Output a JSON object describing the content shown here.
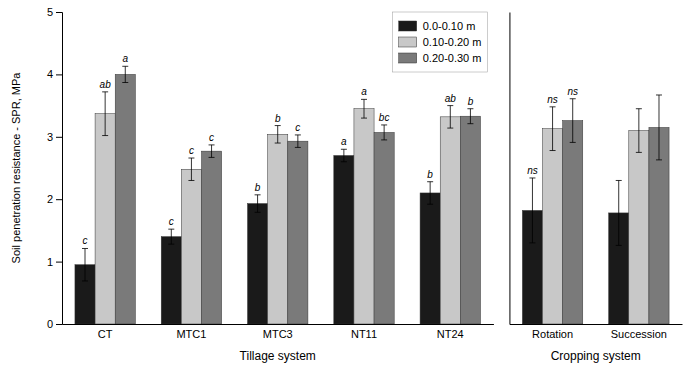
{
  "chart_data": [
    {
      "type": "bar",
      "xlabel": "Tillage system",
      "ylabel": "Soil penetration resistance - SPR, MPa",
      "categories": [
        "CT",
        "MTC1",
        "MTC3",
        "NT11",
        "NT24"
      ],
      "series": [
        {
          "name": "0.0-0.10 m",
          "color": "#1a1a1a",
          "values": [
            0.95,
            1.4,
            1.93,
            2.7,
            2.1
          ],
          "errors": [
            0.26,
            0.12,
            0.14,
            0.1,
            0.18
          ],
          "annotations": [
            "c",
            "c",
            "b",
            "a",
            "b"
          ]
        },
        {
          "name": "0.10-0.20 m",
          "color": "#c8c8c8",
          "values": [
            3.37,
            2.48,
            3.04,
            3.45,
            3.32
          ],
          "errors": [
            0.35,
            0.18,
            0.14,
            0.15,
            0.18
          ],
          "annotations": [
            "ab",
            "c",
            "b",
            "a",
            "ab"
          ]
        },
        {
          "name": "0.20-0.30 m",
          "color": "#7a7a7a",
          "values": [
            4.0,
            2.77,
            2.93,
            3.07,
            3.33
          ],
          "errors": [
            0.13,
            0.1,
            0.1,
            0.12,
            0.12
          ],
          "annotations": [
            "a",
            "c",
            "c",
            "bc",
            "b"
          ]
        }
      ],
      "ylim": [
        0,
        5
      ],
      "yticks": [
        0,
        1,
        2,
        3,
        4,
        5
      ],
      "grid": false,
      "legend": "upper right"
    },
    {
      "type": "bar",
      "xlabel": "Cropping system",
      "categories": [
        "Rotation",
        "Succession"
      ],
      "series": [
        {
          "color": "#1a1a1a",
          "values": [
            1.82,
            1.78
          ],
          "errors": [
            0.52,
            0.52
          ],
          "annotations": [
            "ns",
            null
          ]
        },
        {
          "color": "#c8c8c8",
          "values": [
            3.13,
            3.1
          ],
          "errors": [
            0.35,
            0.35
          ],
          "annotations": [
            "ns",
            null
          ]
        },
        {
          "color": "#7a7a7a",
          "values": [
            3.26,
            3.15
          ],
          "errors": [
            0.35,
            0.52
          ],
          "annotations": [
            "ns",
            null
          ]
        }
      ],
      "ylim": [
        0,
        5
      ],
      "yticks": [
        0,
        1,
        2,
        3,
        4,
        5
      ],
      "grid": false,
      "tick_labels": "x"
    }
  ]
}
